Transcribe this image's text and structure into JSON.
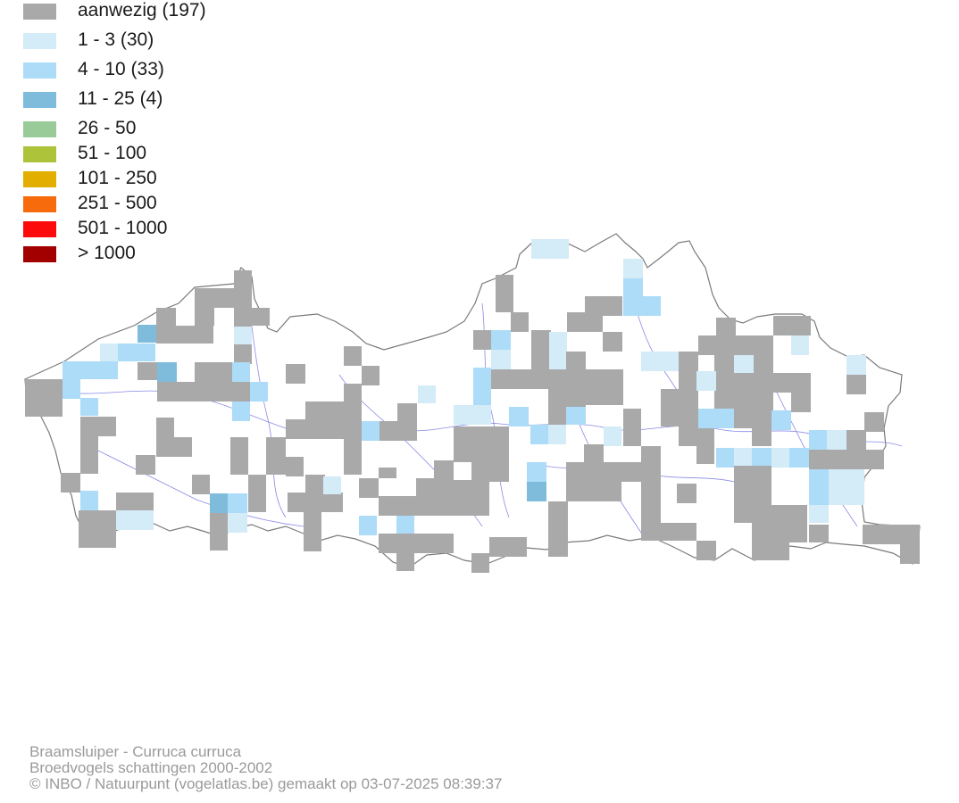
{
  "legend": [
    {
      "label": "aanwezig (197)",
      "color": "#a9a9a9"
    },
    {
      "label": "1 - 3 (30)",
      "color": "#d4ebf8"
    },
    {
      "label": "4 - 10 (33)",
      "color": "#acdcf7"
    },
    {
      "label": "11 - 25 (4)",
      "color": "#7fbcdb"
    },
    {
      "label": "26 - 50",
      "color": "#98cb98"
    },
    {
      "label": "51 - 100",
      "color": "#adc33a"
    },
    {
      "label": "101 - 250",
      "color": "#e2ae00"
    },
    {
      "label": "251 - 500",
      "color": "#f76b0c"
    },
    {
      "label": "501 - 1000",
      "color": "#fb0b0b"
    },
    {
      "label": "> 1000",
      "color": "#a20000"
    }
  ],
  "footer": {
    "species": "Braamsluiper - Curruca curruca",
    "dataset": "Broedvogels schattingen 2000-2002",
    "credit": "© INBO / Natuurpunt (vogelatlas.be) gemaakt op 03-07-2025 08:39:37"
  },
  "map": {
    "outline_color": "#7a7a7a",
    "river_color": "#8a8ae6"
  }
}
